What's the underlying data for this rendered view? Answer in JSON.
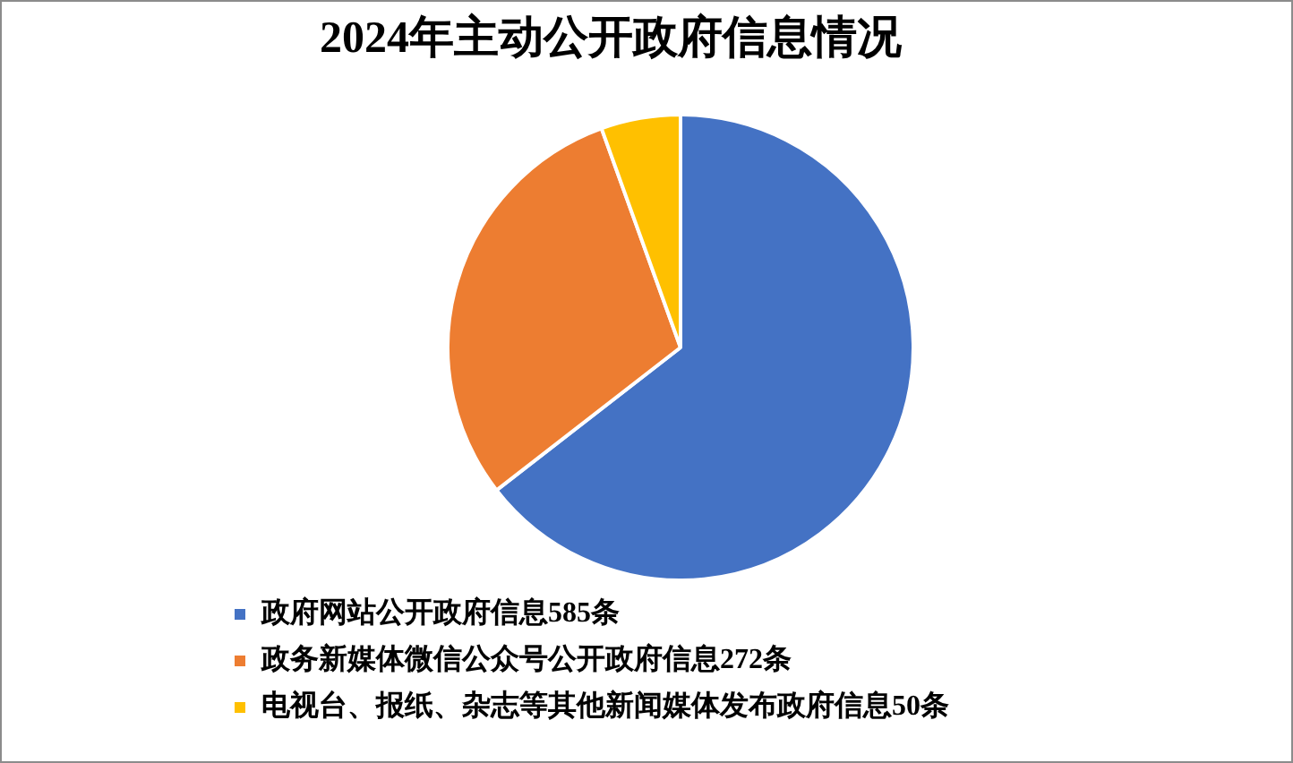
{
  "chart_data": {
    "type": "pie",
    "title": "2024年主动公开政府信息情况",
    "categories": [
      "政府网站公开政府信息585条",
      "政务新媒体微信公众号公开政府信息272条",
      "电视台、报纸、杂志等其他新闻媒体发布政府信息50条"
    ],
    "values": [
      585,
      272,
      50
    ],
    "colors": [
      "#4472c4",
      "#ed7d31",
      "#ffc000"
    ],
    "legend": "bottom left"
  }
}
